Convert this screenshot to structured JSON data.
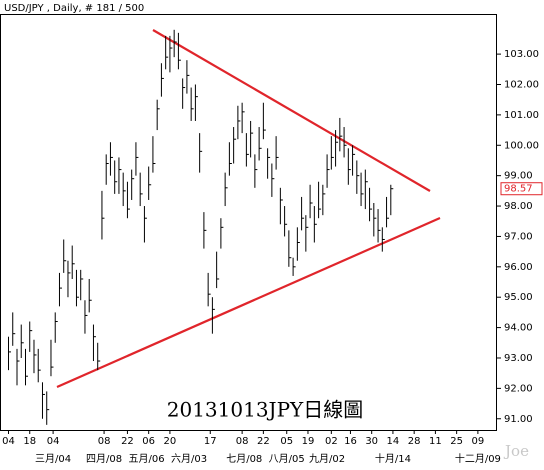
{
  "chart_data": {
    "type": "ohlc",
    "title": "USD/JPY , Daily, # 181 / 500",
    "annotation": "20131013JPY日線圖",
    "watermark": "Joe",
    "color": "#000000",
    "trendline_color": "#e0252b",
    "last_price": 98.57,
    "last_price_color": "#e0252b",
    "xlim": [
      -4,
      230
    ],
    "ylim": [
      90.63,
      104.32
    ],
    "yticks": [
      {
        "value": 91,
        "label": "91.00"
      },
      {
        "value": 92,
        "label": "92.00"
      },
      {
        "value": 93,
        "label": "93.00"
      },
      {
        "value": 94,
        "label": "94.00"
      },
      {
        "value": 95,
        "label": "95.00"
      },
      {
        "value": 96,
        "label": "96.00"
      },
      {
        "value": 97,
        "label": "97.00"
      },
      {
        "value": 98,
        "label": "98.00"
      },
      {
        "value": 99,
        "label": "99.00"
      },
      {
        "value": 100,
        "label": "100.00"
      },
      {
        "value": 101,
        "label": "101.00"
      },
      {
        "value": 102,
        "label": "102.00"
      },
      {
        "value": 103,
        "label": "103.00"
      }
    ],
    "xticks": [
      {
        "value": 0,
        "label": "04"
      },
      {
        "value": 10,
        "label": "18"
      },
      {
        "value": 21,
        "label": "04"
      },
      {
        "value": 45,
        "label": "08"
      },
      {
        "value": 56,
        "label": "22"
      },
      {
        "value": 66,
        "label": "06"
      },
      {
        "value": 76,
        "label": "20"
      },
      {
        "value": 95,
        "label": "17"
      },
      {
        "value": 110,
        "label": "08"
      },
      {
        "value": 120,
        "label": "22"
      },
      {
        "value": 131,
        "label": "05"
      },
      {
        "value": 141,
        "label": "19"
      },
      {
        "value": 152,
        "label": "02"
      },
      {
        "value": 161,
        "label": "16"
      },
      {
        "value": 171,
        "label": "30"
      },
      {
        "value": 181,
        "label": "14"
      },
      {
        "value": 191,
        "label": "28"
      },
      {
        "value": 201,
        "label": "11"
      },
      {
        "value": 211,
        "label": "25"
      },
      {
        "value": 221,
        "label": "09"
      }
    ],
    "month_ticks": [
      {
        "value": 21,
        "label": "三月/04"
      },
      {
        "value": 45,
        "label": "四月/08"
      },
      {
        "value": 65,
        "label": "五月/06"
      },
      {
        "value": 85,
        "label": "六月/03"
      },
      {
        "value": 111,
        "label": "七月/08"
      },
      {
        "value": 131,
        "label": "八月/05"
      },
      {
        "value": 150,
        "label": "九月/02"
      },
      {
        "value": 181,
        "label": "十月/14"
      },
      {
        "value": 221,
        "label": "十二月/09"
      }
    ],
    "x": [
      0,
      2,
      4,
      6,
      8,
      10,
      12,
      14,
      16,
      18,
      20,
      22,
      24,
      26,
      28,
      30,
      32,
      34,
      36,
      38,
      40,
      42,
      44,
      46,
      48,
      50,
      52,
      54,
      56,
      58,
      60,
      62,
      64,
      66,
      68,
      70,
      72,
      74,
      76,
      78,
      80,
      82,
      84,
      86,
      88,
      90,
      92,
      94,
      96,
      98,
      100,
      102,
      104,
      106,
      108,
      110,
      112,
      114,
      116,
      118,
      120,
      122,
      124,
      126,
      128,
      130,
      132,
      134,
      136,
      138,
      140,
      142,
      144,
      146,
      148,
      150,
      152,
      154,
      156,
      158,
      160,
      162,
      164,
      166,
      168,
      170,
      172,
      174,
      176,
      178,
      180
    ],
    "high": [
      93.7,
      94.5,
      93.3,
      94.1,
      93.3,
      94.2,
      93.6,
      93.3,
      92.2,
      91.9,
      93.6,
      94.5,
      95.8,
      96.9,
      96.2,
      96.7,
      95.9,
      95.9,
      94.9,
      95.6,
      94.1,
      93.5,
      98.5,
      99.7,
      100.1,
      99.5,
      99.6,
      99.1,
      98.8,
      99.2,
      100.1,
      99.1,
      98.0,
      99.3,
      100.3,
      101.5,
      102.7,
      103.6,
      103.6,
      103.8,
      103.7,
      102.2,
      102.8,
      101.9,
      102.0,
      100.4,
      97.8,
      95.8,
      95.0,
      96.5,
      97.6,
      99.1,
      100.1,
      100.6,
      101.3,
      101.4,
      100.4,
      100.8,
      99.7,
      100.6,
      101.4,
      99.9,
      99.4,
      100.3,
      98.6,
      98.0,
      97.2,
      96.3,
      97.3,
      98.3,
      97.7,
      98.7,
      98.0,
      98.8,
      98.7,
      99.7,
      100.3,
      100.5,
      100.9,
      100.6,
      99.9,
      100.0,
      99.5,
      99.1,
      99.2,
      98.6,
      98.1,
      97.9,
      97.3,
      98.3,
      98.7
    ],
    "low": [
      92.6,
      93.4,
      92.1,
      93.0,
      92.1,
      93.2,
      92.5,
      92.2,
      91.0,
      90.8,
      92.4,
      93.5,
      94.7,
      95.8,
      95.0,
      95.6,
      94.7,
      94.9,
      93.8,
      94.5,
      92.9,
      92.6,
      96.9,
      98.7,
      99.0,
      98.4,
      98.4,
      98.0,
      97.6,
      98.2,
      99.0,
      98.0,
      96.8,
      98.2,
      99.1,
      100.5,
      101.6,
      102.5,
      102.4,
      102.9,
      102.5,
      101.2,
      101.7,
      100.8,
      100.8,
      99.1,
      96.6,
      94.7,
      93.8,
      95.3,
      96.6,
      98.0,
      99.0,
      99.4,
      100.2,
      100.4,
      99.3,
      99.6,
      98.6,
      99.5,
      100.2,
      98.9,
      98.3,
      99.2,
      97.4,
      97.0,
      96.0,
      95.7,
      96.2,
      97.2,
      96.5,
      97.6,
      96.8,
      97.6,
      97.7,
      98.6,
      99.2,
      99.3,
      99.8,
      99.6,
      98.7,
      99.0,
      98.4,
      98.0,
      97.9,
      97.5,
      97.0,
      96.8,
      96.5,
      97.3,
      97.7
    ],
    "close": [
      93.2,
      93.8,
      92.9,
      93.5,
      92.4,
      93.9,
      93.1,
      92.6,
      91.8,
      91.3,
      92.7,
      94.2,
      95.3,
      96.2,
      95.8,
      96.1,
      95.0,
      95.6,
      94.4,
      94.9,
      93.7,
      92.9,
      97.6,
      99.4,
      99.6,
      98.8,
      99.2,
      98.5,
      97.9,
      98.9,
      99.6,
      98.4,
      97.6,
      98.7,
      99.4,
      101.2,
      102.2,
      102.9,
      103.2,
      103.4,
      102.8,
      101.9,
      102.3,
      101.2,
      101.6,
      99.8,
      97.2,
      95.1,
      94.6,
      95.6,
      97.3,
      98.6,
      99.4,
      100.2,
      100.8,
      101.1,
      99.7,
      100.4,
      99.2,
      99.9,
      100.5,
      99.6,
      98.9,
      99.6,
      98.2,
      97.4,
      96.3,
      96.0,
      96.8,
      97.6,
      97.3,
      98.1,
      97.4,
      97.9,
      98.4,
      99.2,
      99.6,
      100.1,
      100.3,
      100.0,
      99.2,
      99.7,
      99.0,
      98.4,
      98.8,
      97.9,
      97.6,
      97.2,
      96.9,
      97.6,
      98.57
    ]
  }
}
